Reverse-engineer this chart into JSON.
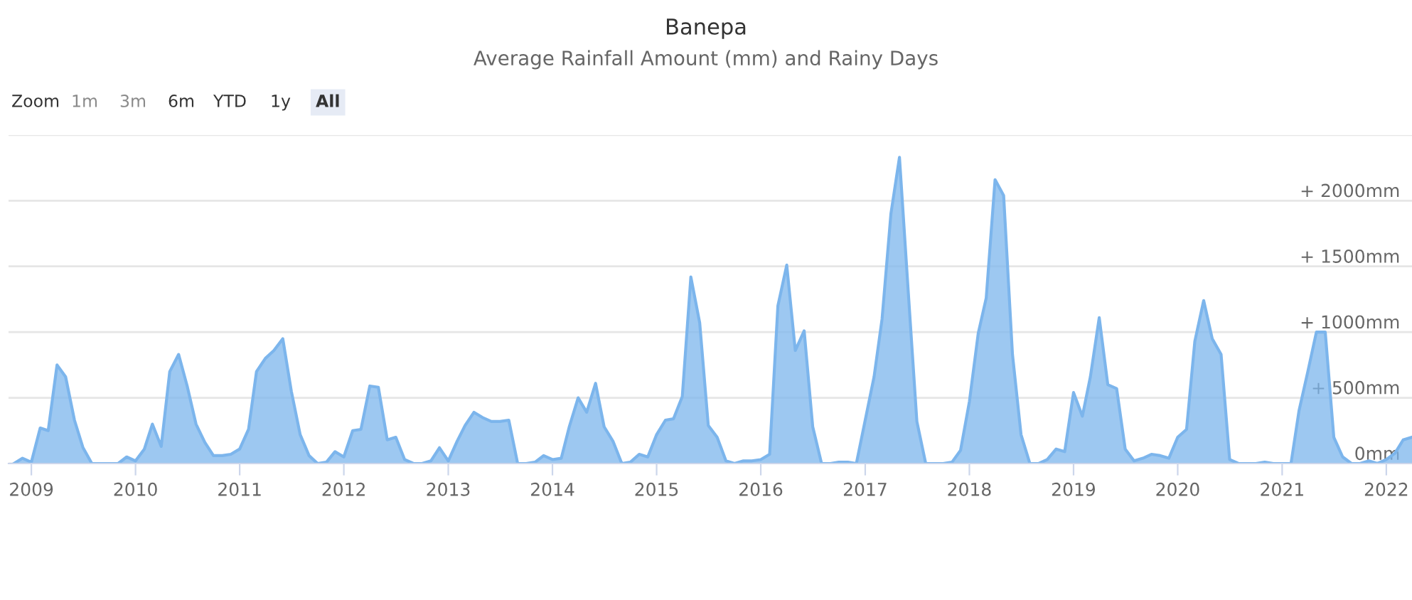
{
  "chart_data": {
    "type": "area",
    "title": "Banepa",
    "subtitle": "Average Rainfall Amount (mm) and Rainy Days",
    "annotations": [
      "Zoom",
      "1m",
      "3m",
      "6m",
      "YTD",
      "1y",
      "All"
    ],
    "x": [
      "2008-11",
      "2008-12",
      "2009-01",
      "2009-02",
      "2009-03",
      "2009-04",
      "2009-05",
      "2009-06",
      "2009-07",
      "2009-08",
      "2009-09",
      "2009-10",
      "2009-11",
      "2009-12",
      "2010-01",
      "2010-02",
      "2010-03",
      "2010-04",
      "2010-05",
      "2010-06",
      "2010-07",
      "2010-08",
      "2010-09",
      "2010-10",
      "2010-11",
      "2010-12",
      "2011-01",
      "2011-02",
      "2011-03",
      "2011-04",
      "2011-05",
      "2011-06",
      "2011-07",
      "2011-08",
      "2011-09",
      "2011-10",
      "2011-11",
      "2011-12",
      "2012-01",
      "2012-02",
      "2012-03",
      "2012-04",
      "2012-05",
      "2012-06",
      "2012-07",
      "2012-08",
      "2012-09",
      "2012-10",
      "2012-11",
      "2012-12",
      "2013-01",
      "2013-02",
      "2013-03",
      "2013-04",
      "2013-05",
      "2013-06",
      "2013-07",
      "2013-08",
      "2013-09",
      "2013-10",
      "2013-11",
      "2013-12",
      "2014-01",
      "2014-02",
      "2014-03",
      "2014-04",
      "2014-05",
      "2014-06",
      "2014-07",
      "2014-08",
      "2014-09",
      "2014-10",
      "2014-11",
      "2014-12",
      "2015-01",
      "2015-02",
      "2015-03",
      "2015-04",
      "2015-05",
      "2015-06",
      "2015-07",
      "2015-08",
      "2015-09",
      "2015-10",
      "2015-11",
      "2015-12",
      "2016-01",
      "2016-02",
      "2016-03",
      "2016-04",
      "2016-05",
      "2016-06",
      "2016-07",
      "2016-08",
      "2016-09",
      "2016-10",
      "2016-11",
      "2016-12",
      "2017-01",
      "2017-02",
      "2017-03",
      "2017-04",
      "2017-05",
      "2017-06",
      "2017-07",
      "2017-08",
      "2017-09",
      "2017-10",
      "2017-11",
      "2017-12",
      "2018-01",
      "2018-02",
      "2018-03",
      "2018-04",
      "2018-05",
      "2018-06",
      "2018-07",
      "2018-08",
      "2018-09",
      "2018-10",
      "2018-11",
      "2018-12",
      "2019-01",
      "2019-02",
      "2019-03",
      "2019-04",
      "2019-05",
      "2019-06",
      "2019-07",
      "2019-08",
      "2019-09",
      "2019-10",
      "2019-11",
      "2019-12",
      "2020-01",
      "2020-02",
      "2020-03",
      "2020-04",
      "2020-05",
      "2020-06",
      "2020-07",
      "2020-08",
      "2020-09",
      "2020-10",
      "2020-11",
      "2020-12",
      "2021-01",
      "2021-02",
      "2021-03",
      "2021-04",
      "2021-05",
      "2021-06",
      "2021-07",
      "2021-08",
      "2021-09",
      "2021-10",
      "2021-11",
      "2021-12",
      "2022-01",
      "2022-02",
      "2022-03",
      "2022-04"
    ],
    "series": [
      {
        "color": "#7cb5ec",
        "values": [
          0,
          40,
          10,
          270,
          250,
          750,
          660,
          330,
          120,
          0,
          0,
          0,
          0,
          50,
          20,
          110,
          300,
          130,
          700,
          830,
          590,
          300,
          160,
          60,
          60,
          70,
          110,
          260,
          700,
          800,
          860,
          950,
          550,
          220,
          60,
          0,
          10,
          90,
          50,
          250,
          260,
          590,
          580,
          180,
          200,
          30,
          0,
          0,
          20,
          120,
          20,
          170,
          290,
          390,
          350,
          320,
          320,
          330,
          0,
          0,
          10,
          60,
          30,
          40,
          280,
          500,
          390,
          610,
          280,
          170,
          0,
          10,
          70,
          50,
          220,
          330,
          340,
          510,
          1420,
          1070,
          290,
          200,
          20,
          0,
          20,
          20,
          30,
          70,
          1200,
          1510,
          860,
          1010,
          280,
          0,
          0,
          10,
          10,
          0,
          330,
          660,
          1100,
          1900,
          2330,
          1300,
          320,
          0,
          0,
          0,
          10,
          100,
          470,
          990,
          1260,
          2160,
          2040,
          830,
          220,
          0,
          0,
          30,
          110,
          90,
          540,
          360,
          660,
          1110,
          600,
          570,
          110,
          20,
          40,
          70,
          60,
          40,
          200,
          260,
          930,
          1240,
          950,
          830,
          30,
          0,
          0,
          0,
          10,
          0,
          0,
          0,
          400,
          700,
          1000,
          1000,
          200,
          50,
          0,
          0,
          20,
          0,
          30,
          80,
          180,
          200
        ]
      }
    ],
    "xlim": [
      "2008-10-13",
      "2022-04-01"
    ],
    "xticks": [
      {
        "value": "2009-01",
        "label": "2009"
      },
      {
        "value": "2010-01",
        "label": "2010"
      },
      {
        "value": "2011-01",
        "label": "2011"
      },
      {
        "value": "2012-01",
        "label": "2012"
      },
      {
        "value": "2013-01",
        "label": "2013"
      },
      {
        "value": "2014-01",
        "label": "2014"
      },
      {
        "value": "2015-01",
        "label": "2015"
      },
      {
        "value": "2016-01",
        "label": "2016"
      },
      {
        "value": "2017-01",
        "label": "2017"
      },
      {
        "value": "2018-01",
        "label": "2018"
      },
      {
        "value": "2019-01",
        "label": "2019"
      },
      {
        "value": "2020-01",
        "label": "2020"
      },
      {
        "value": "2021-01",
        "label": "2021"
      },
      {
        "value": "2022-01",
        "label": "2022"
      }
    ],
    "ylim": [
      0,
      2500
    ],
    "yticks": [
      {
        "value": 0,
        "label": "0mm"
      },
      {
        "value": 500,
        "label": "+ 500mm"
      },
      {
        "value": 1000,
        "label": "+ 1000mm"
      },
      {
        "value": 1500,
        "label": "+ 1500mm"
      },
      {
        "value": 2000,
        "label": "+ 2000mm"
      },
      {
        "value": 2500,
        "label": null
      }
    ],
    "grid": "y"
  }
}
